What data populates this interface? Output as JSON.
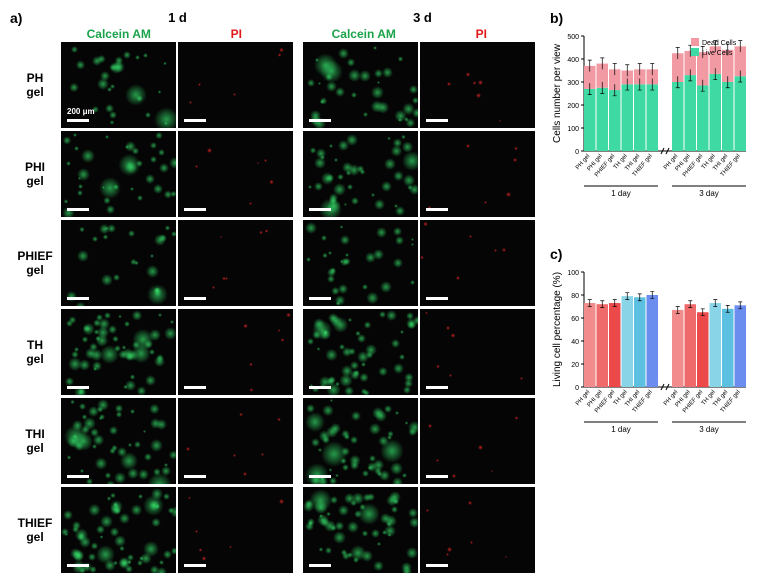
{
  "panelA": {
    "label": "a)",
    "day_labels": [
      "1 d",
      "3 d"
    ],
    "stain_labels": [
      "Calcein AM",
      "PI"
    ],
    "stain_colors": [
      "#1aa34a",
      "#e11919"
    ],
    "scale_text": "200 μm",
    "scale_color": "#ffffff",
    "gel_labels": [
      "PH gel",
      "PHI gel",
      "PHIEF gel",
      "TH gel",
      "THI gel",
      "THIEF gel"
    ],
    "green_density": [
      0.35,
      0.45,
      0.3,
      0.7,
      0.65,
      0.75,
      0.45,
      0.55,
      0.4,
      0.7,
      0.65,
      0.7
    ],
    "red_count": 6,
    "bg_color": "#050505",
    "green_color": "#2cff6a",
    "red_color": "#ff3030"
  },
  "panelB": {
    "label": "b)",
    "ylabel": "Cells number per view",
    "ylim": [
      0,
      500
    ],
    "ytick_step": 100,
    "categories": [
      "PH gel",
      "PHI gel",
      "PHIEF gel",
      "TH gel",
      "THI gel",
      "THIEF gel"
    ],
    "groups": [
      "1 day",
      "3 day"
    ],
    "live_values": [
      [
        270,
        275,
        265,
        290,
        290,
        290
      ],
      [
        300,
        330,
        285,
        335,
        300,
        325
      ]
    ],
    "dead_values": [
      [
        100,
        105,
        90,
        60,
        65,
        65
      ],
      [
        125,
        105,
        145,
        120,
        140,
        130
      ]
    ],
    "live_color": "#3fd9a4",
    "dead_color": "#f29aa3",
    "legend": [
      "Dead Cells",
      "Live Cells"
    ],
    "axis_color": "#000000",
    "axis_fontsize": 10,
    "tick_fontsize": 7,
    "error_bar": 25
  },
  "panelC": {
    "label": "c)",
    "ylabel": "Living cell percentage (%)",
    "ylim": [
      0,
      100
    ],
    "ytick_step": 20,
    "categories": [
      "PH gel",
      "PHI gel",
      "PHIEF gel",
      "TH gel",
      "THI gel",
      "THIEF gel"
    ],
    "groups": [
      "1 day",
      "3 day"
    ],
    "values": [
      [
        73,
        72,
        73,
        79,
        78,
        80
      ],
      [
        67,
        72,
        65,
        73,
        68,
        71
      ]
    ],
    "bar_colors": [
      "#f28b8b",
      "#ef6b6b",
      "#ec4a4a",
      "#8ad4e8",
      "#5cc0e0",
      "#6a8def"
    ],
    "axis_color": "#000000",
    "axis_fontsize": 10,
    "tick_fontsize": 7,
    "error_bar": 3
  },
  "layout": {
    "figure_width": 764,
    "figure_height": 580,
    "background": "#ffffff",
    "font_family": "Arial"
  }
}
